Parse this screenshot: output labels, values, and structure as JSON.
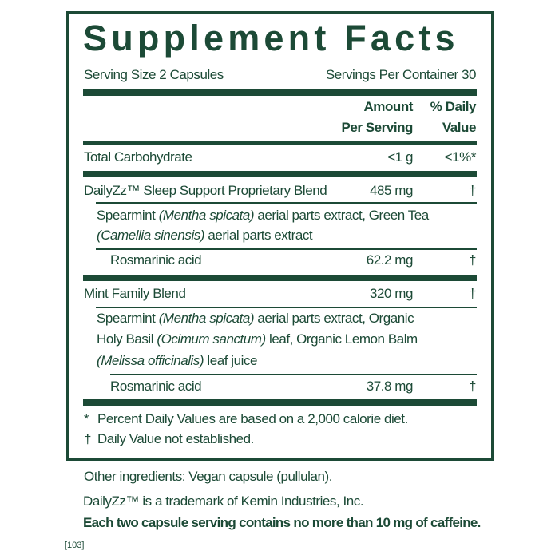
{
  "title": "Supplement Facts",
  "serving_size": "Serving Size 2 Capsules",
  "servings_per_container": "Servings Per Container 30",
  "headers": {
    "amount_line1": "Amount",
    "amount_line2": "Per Serving",
    "dv_line1": "% Daily",
    "dv_line2": "Value"
  },
  "rows": [
    {
      "name": "Total Carbohydrate",
      "amount": "<1 g",
      "dv": "<1%*"
    },
    {
      "name": "DailyZz™ Sleep Support Proprietary Blend",
      "amount": "485 mg",
      "dv": "†",
      "ingredients": [
        [
          {
            "t": "Spearmint "
          },
          {
            "t": "(Mentha spicata)",
            "i": true
          },
          {
            "t": " aerial parts extract, Green Tea"
          }
        ],
        [
          {
            "t": "(Camellia sinensis)",
            "i": true
          },
          {
            "t": " aerial parts extract"
          }
        ]
      ],
      "sub": {
        "name": "Rosmarinic acid",
        "amount": "62.2 mg",
        "dv": "†"
      }
    },
    {
      "name": "Mint Family Blend",
      "amount": "320 mg",
      "dv": "†",
      "ingredients": [
        [
          {
            "t": "Spearmint "
          },
          {
            "t": "(Mentha spicata)",
            "i": true
          },
          {
            "t": " aerial parts extract, Organic"
          }
        ],
        [
          {
            "t": "Holy Basil "
          },
          {
            "t": "(Ocimum sanctum)",
            "i": true
          },
          {
            "t": " leaf, Organic Lemon Balm"
          }
        ],
        [
          {
            "t": "(Melissa officinalis)",
            "i": true
          },
          {
            "t": " leaf juice"
          }
        ]
      ],
      "sub": {
        "name": "Rosmarinic acid",
        "amount": "37.8 mg",
        "dv": "†"
      }
    }
  ],
  "footnotes": [
    {
      "mark": "*",
      "text": "Percent Daily Values are based on a 2,000 calorie diet."
    },
    {
      "mark": "†",
      "text": "Daily Value not established."
    }
  ],
  "other_ingredients": "Other ingredients: Vegan capsule (pullulan).",
  "trademark": "DailyZz™ is a trademark of Kemin Industries, Inc.",
  "caffeine_note": "Each two capsule serving contains no more than 10 mg of caffeine.",
  "code": "[103]",
  "colors": {
    "text": "#1c4a36",
    "background": "#ffffff"
  }
}
